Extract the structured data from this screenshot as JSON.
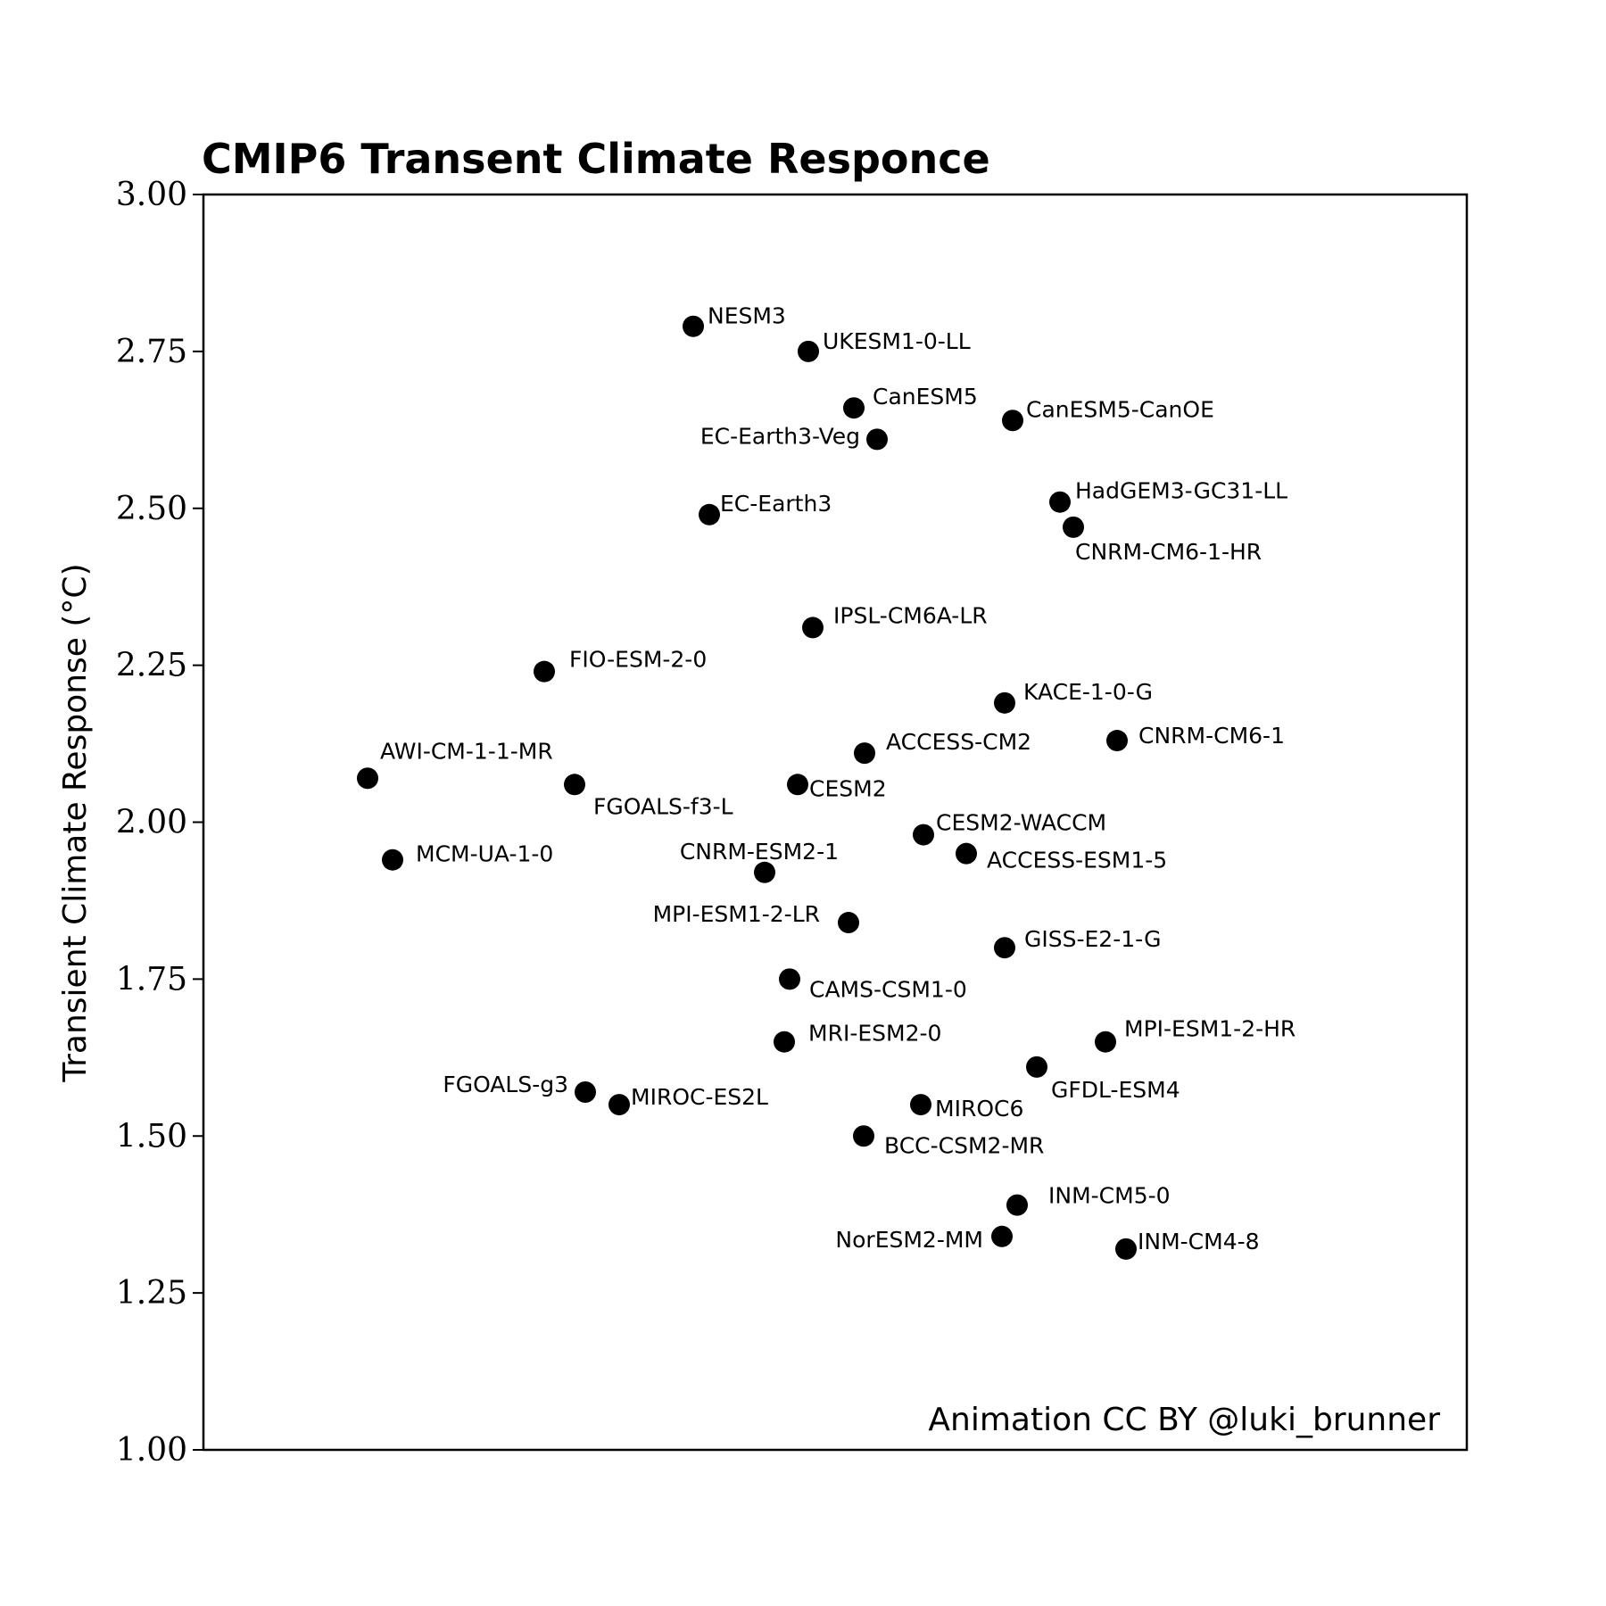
{
  "chart_data": {
    "type": "scatter",
    "title": "CMIP6 Transent Climate Responce",
    "ylabel": "Transient Climate Response (°C)",
    "xlabel": "",
    "ylim": [
      1.0,
      3.0
    ],
    "yticks": [
      "1.00",
      "1.25",
      "1.50",
      "1.75",
      "2.00",
      "2.25",
      "2.50",
      "2.75",
      "3.00"
    ],
    "ytick_values": [
      1.0,
      1.25,
      1.5,
      1.75,
      2.0,
      2.25,
      2.5,
      2.75,
      3.0
    ],
    "grid": false,
    "annotation": "Animation CC BY @luki_brunner",
    "points": [
      {
        "label": "NESM3",
        "y": 2.79
      },
      {
        "label": "UKESM1-0-LL",
        "y": 2.75
      },
      {
        "label": "CanESM5",
        "y": 2.66
      },
      {
        "label": "CanESM5-CanOE",
        "y": 2.64
      },
      {
        "label": "EC-Earth3-Veg",
        "y": 2.61
      },
      {
        "label": "HadGEM3-GC31-LL",
        "y": 2.51
      },
      {
        "label": "EC-Earth3",
        "y": 2.49
      },
      {
        "label": "CNRM-CM6-1-HR",
        "y": 2.47
      },
      {
        "label": "IPSL-CM6A-LR",
        "y": 2.31
      },
      {
        "label": "FIO-ESM-2-0",
        "y": 2.24
      },
      {
        "label": "KACE-1-0-G",
        "y": 2.19
      },
      {
        "label": "CNRM-CM6-1",
        "y": 2.13
      },
      {
        "label": "ACCESS-CM2",
        "y": 2.11
      },
      {
        "label": "AWI-CM-1-1-MR",
        "y": 2.07
      },
      {
        "label": "FGOALS-f3-L",
        "y": 2.06
      },
      {
        "label": "CESM2",
        "y": 2.06
      },
      {
        "label": "CESM2-WACCM",
        "y": 1.98
      },
      {
        "label": "ACCESS-ESM1-5",
        "y": 1.95
      },
      {
        "label": "MCM-UA-1-0",
        "y": 1.94
      },
      {
        "label": "CNRM-ESM2-1",
        "y": 1.92
      },
      {
        "label": "MPI-ESM1-2-LR",
        "y": 1.84
      },
      {
        "label": "GISS-E2-1-G",
        "y": 1.8
      },
      {
        "label": "CAMS-CSM1-0",
        "y": 1.75
      },
      {
        "label": "MRI-ESM2-0",
        "y": 1.65
      },
      {
        "label": "MPI-ESM1-2-HR",
        "y": 1.65
      },
      {
        "label": "GFDL-ESM4",
        "y": 1.61
      },
      {
        "label": "FGOALS-g3",
        "y": 1.57
      },
      {
        "label": "MIROC-ES2L",
        "y": 1.55
      },
      {
        "label": "MIROC6",
        "y": 1.55
      },
      {
        "label": "BCC-CSM2-MR",
        "y": 1.5
      },
      {
        "label": "INM-CM5-0",
        "y": 1.39
      },
      {
        "label": "NorESM2-MM",
        "y": 1.34
      },
      {
        "label": "INM-CM4-8",
        "y": 1.32
      }
    ]
  }
}
